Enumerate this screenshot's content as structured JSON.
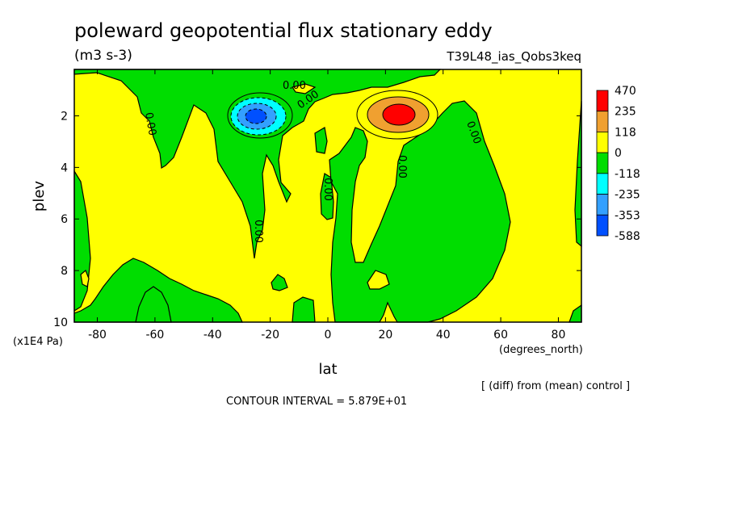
{
  "chart_data": {
    "type": "heatmap",
    "title": "poleward geopotential flux stationary eddy",
    "subtitle": "(m3 s-3)",
    "run_label": "T39L48_ias_Qobs3keq",
    "xlabel": "lat",
    "ylabel": "plev",
    "x_units": "(degrees_north)",
    "y_units": "(x1E4 Pa)",
    "xlim": [
      -88,
      88
    ],
    "ylim": [
      10,
      0.2
    ],
    "x_ticks": [
      -80,
      -60,
      -40,
      -20,
      0,
      20,
      40,
      60,
      80
    ],
    "x_tick_labels": [
      "-80",
      "-60",
      "-40",
      "-20",
      "0",
      "20",
      "40",
      "60",
      "80"
    ],
    "y_ticks": [
      2,
      4,
      6,
      8,
      10
    ],
    "y_tick_labels": [
      "2",
      "4",
      "6",
      "8",
      "10"
    ],
    "colorbar": {
      "levels": [
        "470",
        "235",
        "118",
        "0",
        "-118",
        "-235",
        "-353",
        "-588"
      ],
      "colors": [
        "#ff0000",
        "#f0a030",
        "#ffff00",
        "#00dd00",
        "#00ffff",
        "#33a0ff",
        "#0050ff"
      ]
    },
    "contour_label": "0.00",
    "extrema": [
      {
        "name": "negative-center",
        "lat": -25,
        "plev": 2.0,
        "value_band": "<-353"
      },
      {
        "name": "positive-center",
        "lat": 25,
        "plev": 1.9,
        "value_band": ">235"
      }
    ],
    "note": "[ (diff) from (mean) control ]",
    "contour_interval": "CONTOUR INTERVAL = 5.879E+01"
  },
  "colors": {
    "yellow": "#ffff00",
    "green": "#00dd00",
    "cyan": "#00ffff",
    "light_blue": "#33a0ff",
    "blue": "#0050ff",
    "orange": "#f0a030",
    "red": "#ff0000"
  }
}
